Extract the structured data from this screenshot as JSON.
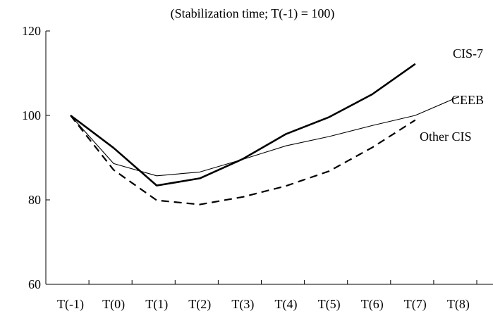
{
  "chart_data": {
    "type": "line",
    "subtitle": "(Stabilization time; T(-1) = 100)",
    "categories": [
      "T(-1)",
      "T(0)",
      "T(1)",
      "T(2)",
      "T(3)",
      "T(4)",
      "T(5)",
      "T(6)",
      "T(7)",
      "T(8)"
    ],
    "y_ticks": [
      "60",
      "80",
      "100",
      "120"
    ],
    "ylim": [
      60,
      120
    ],
    "grid": false,
    "series": [
      {
        "name": "CIS-7",
        "style": "thick-solid",
        "color": "#000000",
        "values": [
          100,
          92.3,
          83.4,
          85.1,
          89.7,
          95.6,
          99.6,
          105.0,
          112.2,
          null
        ]
      },
      {
        "name": "CEEB",
        "style": "thin-solid",
        "color": "#000000",
        "values": [
          100,
          88.6,
          85.7,
          86.6,
          89.6,
          92.8,
          95.0,
          97.6,
          100.0,
          104.4
        ]
      },
      {
        "name": "Other CIS",
        "style": "dashed",
        "color": "#000000",
        "values": [
          100,
          87.1,
          79.9,
          78.9,
          80.7,
          83.3,
          86.8,
          92.4,
          98.9,
          null
        ]
      }
    ]
  }
}
